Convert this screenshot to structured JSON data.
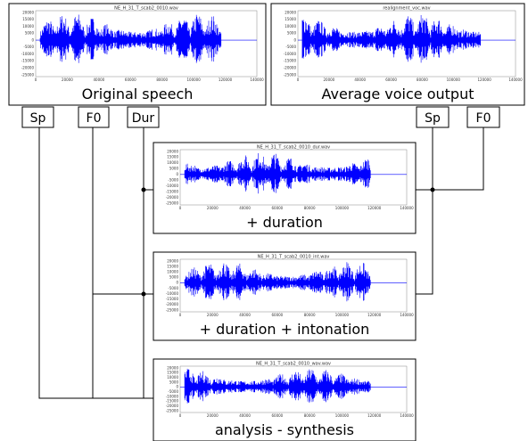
{
  "panels": [
    {
      "title": "NE_H_31_T_scab2_0010.wav",
      "caption": "Original speech"
    },
    {
      "title": "realignment_voc.wav",
      "caption": "Average voice output"
    },
    {
      "title": "NE_H_31_T_scab2_0010_dur.wav",
      "caption": "+ duration"
    },
    {
      "title": "NE_H_31_T_scab2_0010_int.wav",
      "caption": "+ duration + intonation"
    },
    {
      "title": "NE_H_31_T_scab2_0010_wav.wav",
      "caption": "analysis - synthesis"
    }
  ],
  "yticks": [
    "20000",
    "15000",
    "10000",
    "5000",
    "0",
    "-5000",
    "-10000",
    "-15000",
    "-20000",
    "-25000"
  ],
  "xticks": [
    "0",
    "20000",
    "40000",
    "60000",
    "80000",
    "100000",
    "120000",
    "140000"
  ],
  "inputs": {
    "left": [
      "Sp",
      "F0",
      "Dur"
    ],
    "right": [
      "Sp",
      "F0"
    ]
  }
}
